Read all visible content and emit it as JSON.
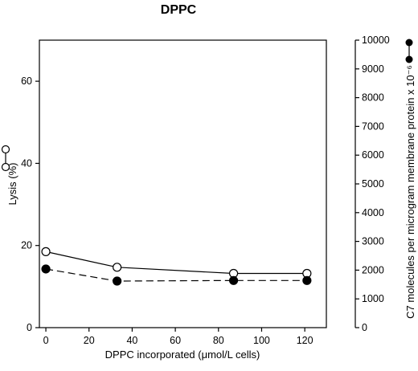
{
  "chart_data": {
    "type": "line",
    "title": "DPPC",
    "xlabel": "DPPC incorporated (μmol/L cells)",
    "ylabel": "Lysis (%)",
    "y2label": "C7 molecules per microgram membrane protein x 10⁻⁶",
    "xlim": [
      -3,
      130
    ],
    "ylim": [
      0,
      70
    ],
    "y2lim": [
      0,
      10000
    ],
    "xticks": [
      "0",
      "20",
      "40",
      "60",
      "80",
      "100",
      "120"
    ],
    "yticks": [
      "0",
      "20",
      "40",
      "60"
    ],
    "y2ticks": [
      "0",
      "1000",
      "2000",
      "3000",
      "4000",
      "5000",
      "6000",
      "7000",
      "8000",
      "9000",
      "10000"
    ],
    "series": [
      {
        "axis": "left",
        "marker": "open-circle",
        "line": "solid",
        "x": [
          0,
          33,
          87,
          121
        ],
        "y": [
          18.5,
          14.7,
          13.2,
          13.2
        ]
      },
      {
        "axis": "right",
        "marker": "filled-circle",
        "line": "dashed",
        "x": [
          0,
          33,
          87,
          121
        ],
        "y": [
          2040,
          1620,
          1640,
          1640
        ]
      }
    ],
    "grid": false,
    "legend": "axis-label markers"
  }
}
